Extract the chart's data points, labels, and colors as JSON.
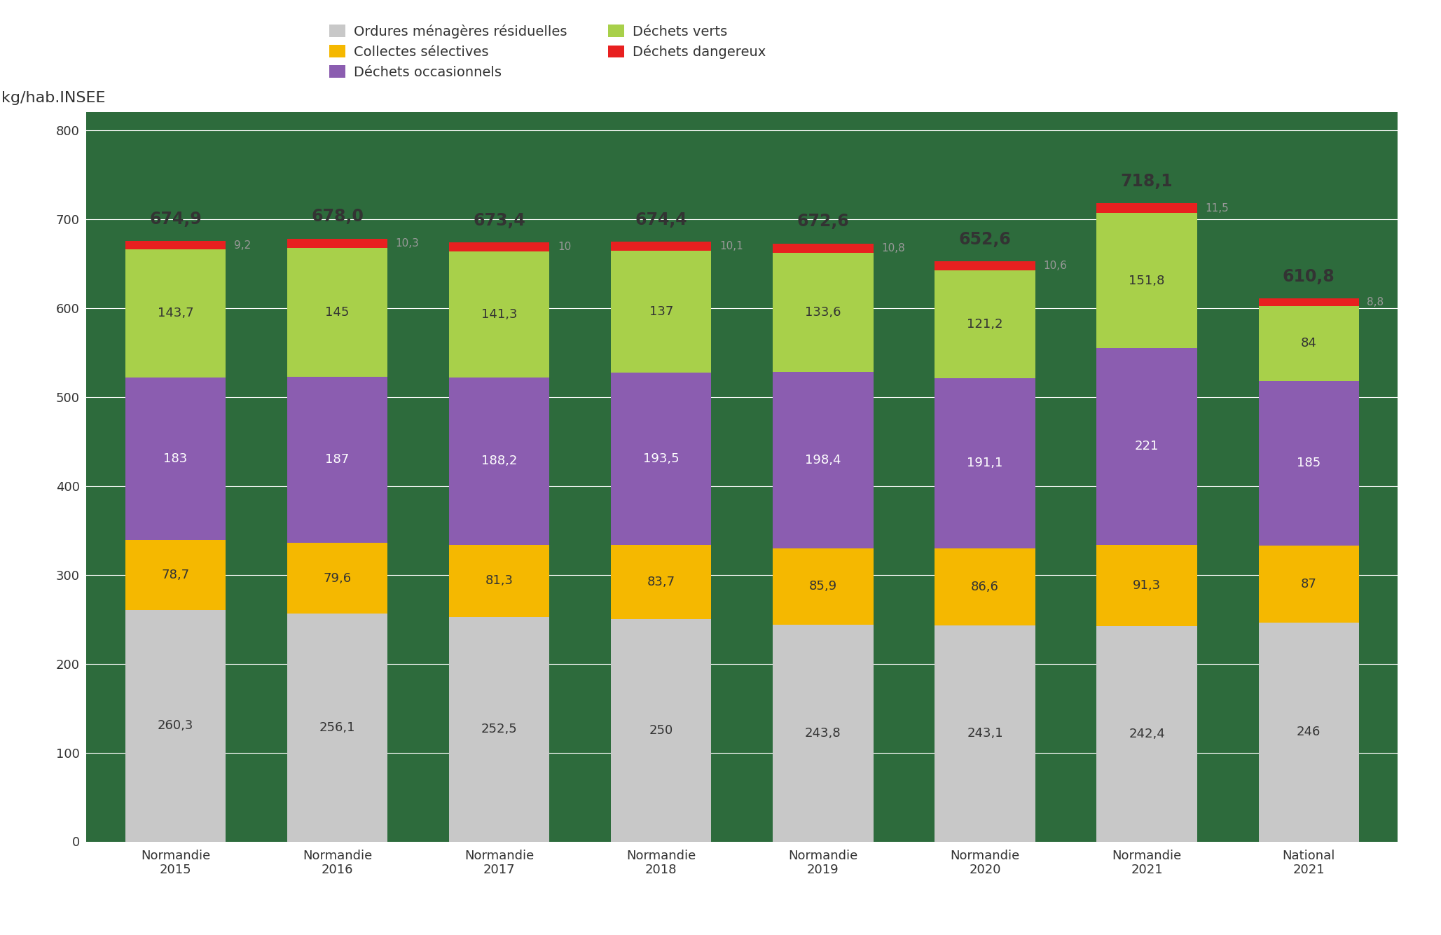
{
  "categories": [
    "Normandie\n2015",
    "Normandie\n2016",
    "Normandie\n2017",
    "Normandie\n2018",
    "Normandie\n2019",
    "Normandie\n2020",
    "Normandie\n2021",
    "National\n2021"
  ],
  "ordures_menageres": [
    260.3,
    256.1,
    252.5,
    250.0,
    243.8,
    243.1,
    242.4,
    246
  ],
  "collectes_selectives": [
    78.7,
    79.6,
    81.3,
    83.7,
    85.9,
    86.6,
    91.3,
    87
  ],
  "dechets_occasionnels": [
    183.0,
    187.0,
    188.2,
    193.5,
    198.4,
    191.1,
    221.0,
    185
  ],
  "dechets_verts": [
    143.7,
    145.0,
    141.3,
    137.0,
    133.6,
    121.2,
    151.8,
    84
  ],
  "dechets_dangereux": [
    9.2,
    10.3,
    10.0,
    10.1,
    10.8,
    10.6,
    11.5,
    8.8
  ],
  "totals": [
    "674,9",
    "678,0",
    "673,4",
    "674,4",
    "672,6",
    "652,6",
    "718,1",
    "610,8"
  ],
  "color_ordures": "#c8c8c8",
  "color_selectives": "#f5b800",
  "color_occasionnels": "#8b5db0",
  "color_verts": "#a8d04a",
  "color_dangereux": "#e82020",
  "fig_background": "#ffffff",
  "plot_background": "#2d6b3c",
  "grid_color": "#ffffff",
  "text_color_dark": "#333333",
  "text_color_white": "#ffffff",
  "text_color_gray": "#999999",
  "ylabel": "kg/hab.INSEE",
  "ylim": [
    0,
    820
  ],
  "yticks": [
    0,
    100,
    200,
    300,
    400,
    500,
    600,
    700,
    800
  ],
  "legend_labels_col1": [
    "Ordures ménagères résiduelles",
    "Déchets occasionnels",
    "Déchets dangereux"
  ],
  "legend_labels_col2": [
    "Collectes sélectives",
    "Déchets verts"
  ],
  "legend_colors_col1": [
    "#c8c8c8",
    "#8b5db0",
    "#e82020"
  ],
  "legend_colors_col2": [
    "#f5b800",
    "#a8d04a"
  ],
  "title_fontsize": 16,
  "label_fontsize": 13,
  "tick_fontsize": 13,
  "legend_fontsize": 14,
  "total_fontsize": 17,
  "danger_fontsize": 11
}
